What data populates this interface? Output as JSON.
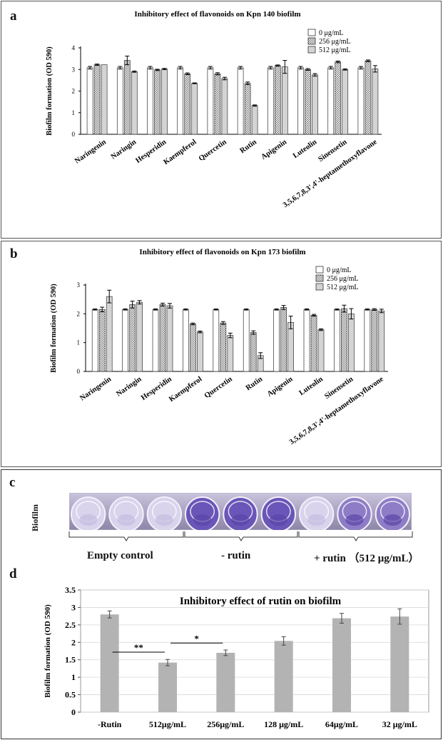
{
  "panel_labels": {
    "a": "a",
    "b": "b",
    "c": "c",
    "d": "d"
  },
  "chart_data": [
    {
      "type": "bar",
      "title": "Inhibitory effect of flavonoids on Kpn 140 biofilm",
      "ylabel": "Biofilm formation (OD 590)",
      "ylim": [
        0,
        4
      ],
      "yticks": [
        "0",
        "1",
        "2",
        "3",
        "4"
      ],
      "legend_position": "top-right",
      "categories": [
        "Naringenin",
        "Naringin",
        "Hesperidin",
        "Kaempferol",
        "Quercetin",
        "Rutin",
        "Apigenin",
        "Luteolin",
        "Sinensetin",
        "3,5,6,7,8,3',4'-heptamethoxyflavone"
      ],
      "series": [
        {
          "name": "0 μg/mL",
          "values": [
            3.08,
            3.08,
            3.08,
            3.08,
            3.08,
            3.08,
            3.08,
            3.08,
            3.08,
            3.08
          ],
          "errors": [
            0.06,
            0.06,
            0.06,
            0.06,
            0.06,
            0.06,
            0.06,
            0.06,
            0.06,
            0.06
          ]
        },
        {
          "name": "256 μg/mL",
          "values": [
            3.22,
            3.42,
            2.98,
            2.8,
            2.8,
            2.36,
            3.18,
            3.0,
            3.35,
            3.4
          ],
          "errors": [
            0.03,
            0.2,
            0.03,
            0.04,
            0.05,
            0.06,
            0.03,
            0.04,
            0.04,
            0.04
          ]
        },
        {
          "name": "512 μg/mL",
          "values": [
            3.22,
            2.9,
            3.02,
            2.36,
            2.58,
            1.33,
            3.12,
            2.75,
            3.0,
            3.03
          ],
          "errors": [
            0.0,
            0.03,
            0.03,
            0.02,
            0.06,
            0.03,
            0.3,
            0.06,
            0.03,
            0.15
          ]
        }
      ]
    },
    {
      "type": "bar",
      "title": "Inhibitory effect of flavonoids on Kpn 173 biofilm",
      "ylabel": "Biofilm formation (OD 590)",
      "ylim": [
        0,
        3
      ],
      "yticks": [
        "0",
        "1",
        "2",
        "3"
      ],
      "legend_position": "top-right",
      "categories": [
        "Naringenin",
        "Naringin",
        "Hesperidin",
        "Kaempferol",
        "Quercetin",
        "Rutin",
        "Apigenin",
        "Luteolin",
        "Sinensetin",
        "3,5,6,7,8,3',4'-heptamethoxyflavone"
      ],
      "series": [
        {
          "name": "0 μg/mL",
          "values": [
            2.15,
            2.15,
            2.15,
            2.15,
            2.15,
            2.15,
            2.15,
            2.15,
            2.15,
            2.15
          ],
          "errors": [
            0.02,
            0.02,
            0.02,
            0.02,
            0.02,
            0.02,
            0.02,
            0.02,
            0.02,
            0.02
          ]
        },
        {
          "name": "256 μg/mL",
          "values": [
            2.15,
            2.32,
            2.32,
            1.65,
            1.68,
            1.35,
            2.22,
            1.95,
            2.18,
            2.15
          ],
          "errors": [
            0.08,
            0.12,
            0.05,
            0.03,
            0.05,
            0.06,
            0.07,
            0.03,
            0.12,
            0.03
          ]
        },
        {
          "name": "512 μg/mL",
          "values": [
            2.6,
            2.4,
            2.28,
            1.37,
            1.25,
            0.55,
            1.7,
            1.45,
            2.0,
            2.1
          ],
          "errors": [
            0.22,
            0.06,
            0.08,
            0.03,
            0.08,
            0.1,
            0.22,
            0.03,
            0.18,
            0.06
          ]
        }
      ]
    },
    {
      "type": "bar",
      "title": "Inhibitory effect of rutin on biofilm",
      "ylabel": "Biofilm formation (OD 590)",
      "ylim": [
        0,
        3.5
      ],
      "yticks": [
        "0",
        "0.5",
        "1",
        "1.5",
        "2",
        "2.5",
        "3",
        "3.5"
      ],
      "grid": true,
      "categories": [
        "-Rutin",
        "512μg/mL",
        "256μg/mL",
        "128 μg/mL",
        "64μg/mL",
        "32 μg/mL"
      ],
      "values": [
        2.8,
        1.42,
        1.7,
        2.04,
        2.69,
        2.74
      ],
      "errors": [
        0.1,
        0.09,
        0.08,
        0.12,
        0.14,
        0.22
      ],
      "significance": [
        {
          "from": 0,
          "to": 1,
          "label": "**",
          "value": 1.72
        },
        {
          "from": 1,
          "to": 2,
          "label": "*",
          "value": 1.98
        }
      ]
    }
  ],
  "biofilm_image": {
    "row_label": "Biofilm",
    "groups": [
      "Empty control",
      "- rutin",
      "+ rutin （512 μg/mL）"
    ],
    "well_stain": [
      "light",
      "light",
      "light",
      "heavy",
      "heavy",
      "heavy",
      "light",
      "medium",
      "medium"
    ],
    "colors": {
      "light": "#d9d3ec",
      "medium": "#8e7dc6",
      "heavy": "#6a55b8",
      "rim": "#f3f1fa"
    }
  },
  "colors": {
    "bar_white": "#ffffff",
    "bar_hatch": "#7a7a7a",
    "bar_gray": "#d4d4d4",
    "bar_d": "#b3b3b3",
    "axis": "#333333"
  }
}
